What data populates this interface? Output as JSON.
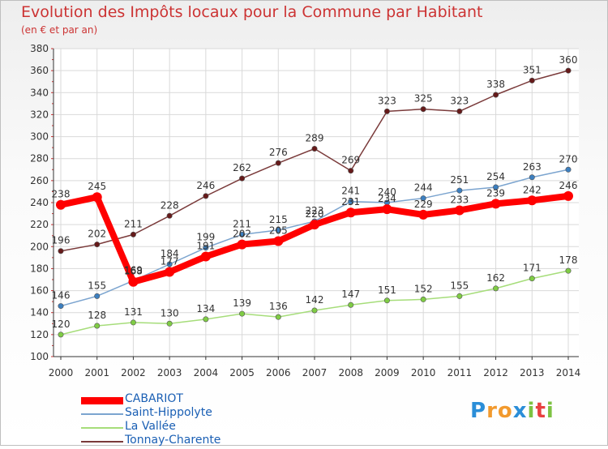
{
  "chart_data": {
    "type": "line",
    "title": "Evolution des Impôts locaux pour la Commune par Habitant",
    "subtitle": "(en € et par an)",
    "x": [
      "2000",
      "2001",
      "2002",
      "2003",
      "2004",
      "2005",
      "2006",
      "2007",
      "2008",
      "2009",
      "2010",
      "2011",
      "2012",
      "2013",
      "2014"
    ],
    "ylim": [
      100,
      380
    ],
    "yticks": [
      100,
      120,
      140,
      160,
      180,
      200,
      220,
      240,
      260,
      280,
      300,
      320,
      340,
      360,
      380
    ],
    "grid": true,
    "series": [
      {
        "name": "CABARIOT",
        "color": "#ff0000",
        "marker": "#ff0000",
        "width": "thick",
        "values": [
          238,
          245,
          168,
          177,
          191,
          202,
          205,
          220,
          231,
          234,
          229,
          233,
          239,
          242,
          246
        ]
      },
      {
        "name": "Saint-Hippolyte",
        "color": "#7ba4cf",
        "marker": "#3c7fc0",
        "width": "thin",
        "values": [
          146,
          155,
          169,
          184,
          199,
          211,
          215,
          223,
          241,
          240,
          244,
          251,
          254,
          263,
          270
        ]
      },
      {
        "name": "La Vallée",
        "color": "#a6dd7a",
        "marker": "#7fcc44",
        "width": "thin",
        "values": [
          120,
          128,
          131,
          130,
          134,
          139,
          136,
          142,
          147,
          151,
          152,
          155,
          162,
          171,
          178
        ]
      },
      {
        "name": "Tonnay-Charente",
        "color": "#7a3a3a",
        "marker": "#661a1a",
        "width": "thin",
        "values": [
          196,
          202,
          211,
          228,
          246,
          262,
          276,
          289,
          269,
          323,
          325,
          323,
          338,
          351,
          360
        ]
      }
    ]
  },
  "logo": {
    "letters": [
      "P",
      "r",
      "o",
      "x",
      "i",
      "t",
      "i"
    ],
    "colors": [
      "#2b8ed8",
      "#f29a2e",
      "#f29a2e",
      "#2b8ed8",
      "#7dc242",
      "#e84040",
      "#7dc242"
    ]
  }
}
